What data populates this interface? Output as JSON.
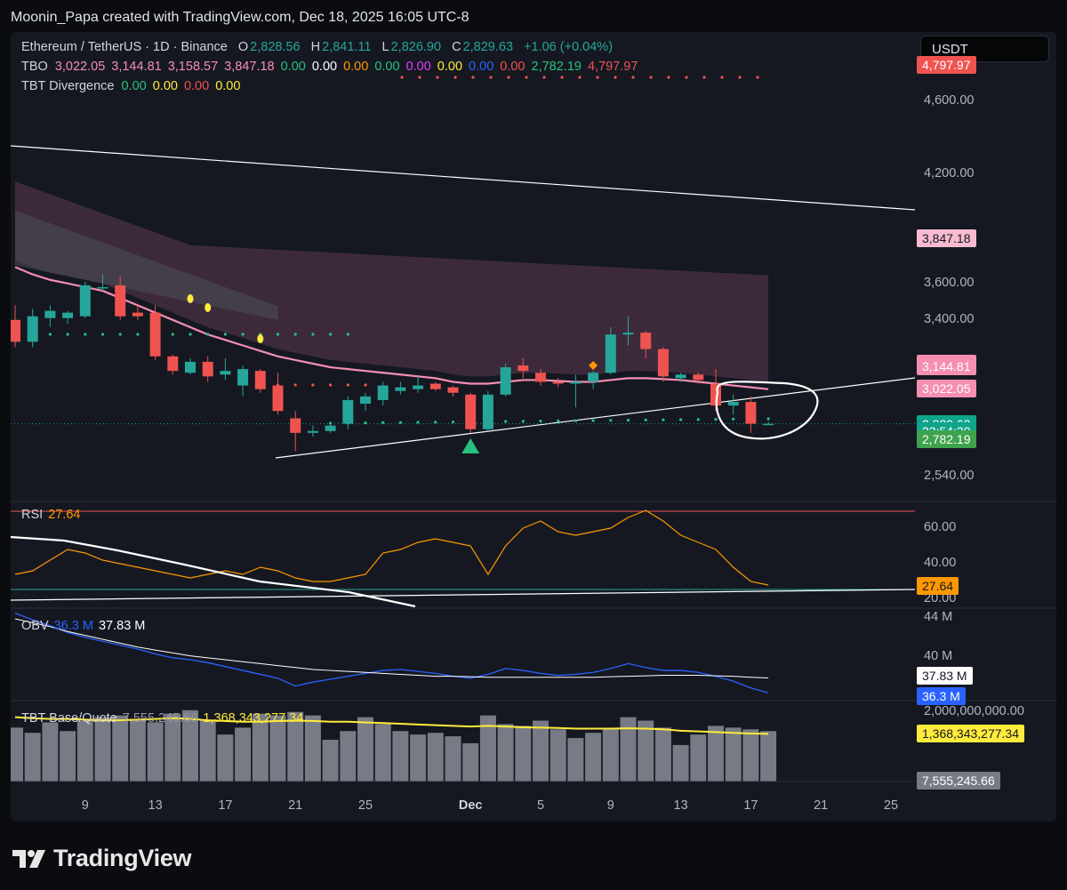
{
  "header": {
    "caption": "Moonin_Papa created with TradingView.com, Dec 18, 2025 16:05 UTC-8",
    "currency_button": "USDT"
  },
  "legend": {
    "symbol": "Ethereum / TetherUS · 1D · Binance",
    "ohlc": {
      "o_label": "O",
      "o": "2,828.56",
      "h_label": "H",
      "h": "2,841.11",
      "l_label": "L",
      "l": "2,826.90",
      "c_label": "C",
      "c": "2,829.63",
      "change": "+1.06 (+0.04%)"
    },
    "tbo_name": "TBO",
    "tbo_values": [
      {
        "text": "3,022.05",
        "color": "#f48fb1"
      },
      {
        "text": "3,144.81",
        "color": "#f48fb1"
      },
      {
        "text": "3,158.57",
        "color": "#f48fb1"
      },
      {
        "text": "3,847.18",
        "color": "#f48fb1"
      },
      {
        "text": "0.00",
        "color": "#26c281"
      },
      {
        "text": "0.00",
        "color": "#ffffff"
      },
      {
        "text": "0.00",
        "color": "#ff9800"
      },
      {
        "text": "0.00",
        "color": "#26c281"
      },
      {
        "text": "0.00",
        "color": "#e040fb"
      },
      {
        "text": "0.00",
        "color": "#ffeb3b"
      },
      {
        "text": "0.00",
        "color": "#2962ff"
      },
      {
        "text": "0.00",
        "color": "#ef5350"
      },
      {
        "text": "2,782.19",
        "color": "#26c281"
      },
      {
        "text": "4,797.97",
        "color": "#ef5350"
      }
    ],
    "div_name": "TBT Divergence",
    "div_values": [
      {
        "text": "0.00",
        "color": "#26c281"
      },
      {
        "text": "0.00",
        "color": "#ffeb3b"
      },
      {
        "text": "0.00",
        "color": "#ef5350"
      },
      {
        "text": "0.00",
        "color": "#ffeb3b"
      }
    ],
    "rsi_name": "RSI",
    "rsi_value": "27.64",
    "obv_name": "OBV",
    "obv_value1": "36.3 M",
    "obv_value2": "37.83 M",
    "tbt_name": "TBT Base/Quote",
    "tbt_value1": "7,555,245.66",
    "tbt_value2": "1,368,343,277.34"
  },
  "price_axis": [
    "4,600.00",
    "4,200.00",
    "3,600.00",
    "3,400.00",
    "2,540.00"
  ],
  "price_tags": [
    {
      "text": "4,797.97",
      "bg": "#ef5350",
      "fg": "#ffffff",
      "price": 4797.97
    },
    {
      "text": "3,847.18",
      "bg": "#f8bbd0",
      "fg": "#131722",
      "price": 3847.18
    },
    {
      "text": "3,158.57",
      "bg": "#f48fb1",
      "fg": "#ffffff",
      "price": 3158.57
    },
    {
      "text": "3,144.81",
      "bg": "#f48fb1",
      "fg": "#ffffff",
      "price": 3144.81
    },
    {
      "text": "3,022.05",
      "bg": "#f48fb1",
      "fg": "#ffffff",
      "price": 3022.05
    },
    {
      "text": "2,829.63",
      "bg": "#0ea58a",
      "fg": "#ffffff",
      "price": 2829.63
    },
    {
      "text": "23:54:30",
      "bg": "#0ea58a",
      "fg": "#ffffff",
      "price": 2790
    },
    {
      "text": "2,782.19",
      "bg": "#3fa34d",
      "fg": "#ffffff",
      "price": 2745
    }
  ],
  "rsi_axis": [
    "60.00",
    "40.00",
    "20.00"
  ],
  "rsi_tag": {
    "text": "27.64",
    "bg": "#ff9800",
    "fg": "#131722"
  },
  "obv_axis": [
    "44 M",
    "40 M"
  ],
  "obv_tags": [
    {
      "text": "37.83 M",
      "bg": "#ffffff",
      "fg": "#131722"
    },
    {
      "text": "36.3 M",
      "bg": "#2962ff",
      "fg": "#ffffff"
    }
  ],
  "tbt_axis": [
    "2,000,000,000.00"
  ],
  "tbt_tags": [
    {
      "text": "1,368,343,277.34",
      "bg": "#ffeb3b",
      "fg": "#131722"
    },
    {
      "text": "7,555,245.66",
      "bg": "#787b86",
      "fg": "#ffffff"
    }
  ],
  "date_labels": [
    "9",
    "13",
    "17",
    "21",
    "25",
    "Dec",
    "5",
    "9",
    "13",
    "17",
    "21",
    "25"
  ],
  "brand": "TradingView",
  "chart_data": {
    "type": "candlestick",
    "title": "Ethereum / TetherUS · 1D · Binance",
    "x_start": "2025-11-05",
    "candles": [
      {
        "date": "2025-11-05",
        "o": 3400,
        "h": 3480,
        "l": 3250,
        "c": 3280
      },
      {
        "date": "2025-11-06",
        "o": 3280,
        "h": 3460,
        "l": 3250,
        "c": 3420
      },
      {
        "date": "2025-11-07",
        "o": 3410,
        "h": 3480,
        "l": 3360,
        "c": 3450
      },
      {
        "date": "2025-11-08",
        "o": 3410,
        "h": 3450,
        "l": 3380,
        "c": 3440
      },
      {
        "date": "2025-11-09",
        "o": 3420,
        "h": 3610,
        "l": 3410,
        "c": 3590
      },
      {
        "date": "2025-11-10",
        "o": 3580,
        "h": 3650,
        "l": 3560,
        "c": 3580
      },
      {
        "date": "2025-11-11",
        "o": 3590,
        "h": 3640,
        "l": 3400,
        "c": 3420
      },
      {
        "date": "2025-11-12",
        "o": 3440,
        "h": 3480,
        "l": 3400,
        "c": 3420
      },
      {
        "date": "2025-11-13",
        "o": 3440,
        "h": 3480,
        "l": 3180,
        "c": 3200
      },
      {
        "date": "2025-11-14",
        "o": 3200,
        "h": 3210,
        "l": 3100,
        "c": 3120
      },
      {
        "date": "2025-11-15",
        "o": 3110,
        "h": 3190,
        "l": 3100,
        "c": 3170
      },
      {
        "date": "2025-11-16",
        "o": 3170,
        "h": 3200,
        "l": 3060,
        "c": 3090
      },
      {
        "date": "2025-11-17",
        "o": 3100,
        "h": 3190,
        "l": 3070,
        "c": 3120
      },
      {
        "date": "2025-11-18",
        "o": 3040,
        "h": 3150,
        "l": 2980,
        "c": 3130
      },
      {
        "date": "2025-11-19",
        "o": 3120,
        "h": 3130,
        "l": 3000,
        "c": 3020
      },
      {
        "date": "2025-11-20",
        "o": 3040,
        "h": 3110,
        "l": 2880,
        "c": 2900
      },
      {
        "date": "2025-11-21",
        "o": 2860,
        "h": 2900,
        "l": 2680,
        "c": 2780
      },
      {
        "date": "2025-11-22",
        "o": 2780,
        "h": 2820,
        "l": 2760,
        "c": 2790
      },
      {
        "date": "2025-11-23",
        "o": 2790,
        "h": 2830,
        "l": 2780,
        "c": 2820
      },
      {
        "date": "2025-11-24",
        "o": 2830,
        "h": 2980,
        "l": 2800,
        "c": 2960
      },
      {
        "date": "2025-11-25",
        "o": 2940,
        "h": 3000,
        "l": 2900,
        "c": 2980
      },
      {
        "date": "2025-11-26",
        "o": 2960,
        "h": 3060,
        "l": 2930,
        "c": 3040
      },
      {
        "date": "2025-11-27",
        "o": 3010,
        "h": 3060,
        "l": 2990,
        "c": 3030
      },
      {
        "date": "2025-11-28",
        "o": 3020,
        "h": 3090,
        "l": 3000,
        "c": 3040
      },
      {
        "date": "2025-11-29",
        "o": 3050,
        "h": 3060,
        "l": 3010,
        "c": 3020
      },
      {
        "date": "2025-11-30",
        "o": 3030,
        "h": 3040,
        "l": 2980,
        "c": 3000
      },
      {
        "date": "2025-12-01",
        "o": 2990,
        "h": 3000,
        "l": 2780,
        "c": 2800
      },
      {
        "date": "2025-12-02",
        "o": 2800,
        "h": 3010,
        "l": 2790,
        "c": 2990
      },
      {
        "date": "2025-12-03",
        "o": 2990,
        "h": 3160,
        "l": 2980,
        "c": 3140
      },
      {
        "date": "2025-12-04",
        "o": 3150,
        "h": 3190,
        "l": 3080,
        "c": 3120
      },
      {
        "date": "2025-12-05",
        "o": 3110,
        "h": 3130,
        "l": 3040,
        "c": 3060
      },
      {
        "date": "2025-12-06",
        "o": 3060,
        "h": 3080,
        "l": 3030,
        "c": 3050
      },
      {
        "date": "2025-12-07",
        "o": 3050,
        "h": 3100,
        "l": 2920,
        "c": 3060
      },
      {
        "date": "2025-12-08",
        "o": 3060,
        "h": 3120,
        "l": 3020,
        "c": 3110
      },
      {
        "date": "2025-12-09",
        "o": 3110,
        "h": 3360,
        "l": 3100,
        "c": 3320
      },
      {
        "date": "2025-12-10",
        "o": 3320,
        "h": 3420,
        "l": 3260,
        "c": 3330
      },
      {
        "date": "2025-12-11",
        "o": 3330,
        "h": 3340,
        "l": 3190,
        "c": 3240
      },
      {
        "date": "2025-12-12",
        "o": 3240,
        "h": 3250,
        "l": 3060,
        "c": 3090
      },
      {
        "date": "2025-12-13",
        "o": 3080,
        "h": 3110,
        "l": 3060,
        "c": 3100
      },
      {
        "date": "2025-12-14",
        "o": 3100,
        "h": 3110,
        "l": 3050,
        "c": 3070
      },
      {
        "date": "2025-12-15",
        "o": 3050,
        "h": 3130,
        "l": 2900,
        "c": 2930
      },
      {
        "date": "2025-12-16",
        "o": 2930,
        "h": 2990,
        "l": 2880,
        "c": 2950
      },
      {
        "date": "2025-12-17",
        "o": 2950,
        "h": 2980,
        "l": 2780,
        "c": 2830
      },
      {
        "date": "2025-12-18",
        "o": 2828.56,
        "h": 2841.11,
        "l": 2826.9,
        "c": 2829.63
      }
    ],
    "tbo_line": [
      3690,
      3650,
      3620,
      3600,
      3580,
      3560,
      3520,
      3480,
      3440,
      3400,
      3360,
      3320,
      3290,
      3260,
      3230,
      3200,
      3180,
      3160,
      3140,
      3130,
      3120,
      3110,
      3100,
      3090,
      3080,
      3060,
      3050,
      3050,
      3060,
      3070,
      3070,
      3065,
      3060,
      3060,
      3070,
      3080,
      3080,
      3075,
      3070,
      3060,
      3050,
      3040,
      3030,
      3020
    ],
    "ylim": [
      2400,
      4900
    ],
    "rsi": {
      "values": [
        34,
        36,
        42,
        48,
        46,
        42,
        40,
        38,
        36,
        34,
        32,
        34,
        36,
        34,
        38,
        36,
        32,
        30,
        30,
        32,
        34,
        46,
        48,
        52,
        54,
        52,
        50,
        34,
        50,
        60,
        64,
        58,
        56,
        58,
        60,
        66,
        70,
        64,
        56,
        52,
        48,
        38,
        30,
        28
      ],
      "ylim": [
        15,
        75
      ],
      "overbought": 70,
      "oversold": 30
    },
    "obv": {
      "values": [
        44.5,
        43.8,
        43.2,
        42.5,
        42.0,
        41.6,
        41.2,
        40.8,
        40.3,
        39.9,
        39.7,
        39.4,
        39.0,
        38.6,
        38.2,
        37.8,
        37.0,
        37.4,
        37.7,
        38.0,
        38.3,
        38.6,
        38.7,
        38.5,
        38.3,
        38.0,
        37.8,
        38.2,
        38.8,
        38.6,
        38.3,
        38.1,
        38.2,
        38.4,
        38.8,
        39.3,
        38.9,
        38.6,
        38.6,
        38.4,
        38.0,
        37.5,
        36.8,
        36.3
      ],
      "ma": [
        43.9,
        43.5,
        43.1,
        42.6,
        42.2,
        41.8,
        41.4,
        41.0,
        40.7,
        40.4,
        40.1,
        39.9,
        39.7,
        39.5,
        39.3,
        39.1,
        38.9,
        38.7,
        38.6,
        38.5,
        38.4,
        38.3,
        38.2,
        38.1,
        38.0,
        38.0,
        37.95,
        37.9,
        37.9,
        37.9,
        37.9,
        37.9,
        37.9,
        37.9,
        37.95,
        38.0,
        38.05,
        38.1,
        38.1,
        38.1,
        38.05,
        38.0,
        37.9,
        37.83
      ],
      "ylim": [
        35.5,
        45
      ]
    },
    "tbt_base_quote": {
      "bars": [
        1.55,
        1.4,
        1.7,
        1.45,
        1.75,
        1.85,
        1.9,
        1.8,
        1.7,
        1.95,
        2.05,
        1.75,
        1.35,
        1.55,
        1.95,
        1.9,
        2.0,
        1.9,
        1.2,
        1.45,
        1.85,
        1.65,
        1.45,
        1.35,
        1.4,
        1.3,
        1.1,
        1.9,
        1.65,
        1.6,
        1.75,
        1.5,
        1.25,
        1.4,
        1.5,
        1.85,
        1.75,
        1.55,
        1.05,
        1.35,
        1.6,
        1.55,
        1.5,
        1.45
      ],
      "line": [
        1.85,
        1.82,
        1.8,
        1.8,
        1.78,
        1.76,
        1.76,
        1.78,
        1.8,
        1.82,
        1.8,
        1.76,
        1.74,
        1.72,
        1.72,
        1.74,
        1.75,
        1.74,
        1.72,
        1.72,
        1.7,
        1.68,
        1.66,
        1.64,
        1.62,
        1.6,
        1.58,
        1.6,
        1.58,
        1.56,
        1.55,
        1.54,
        1.52,
        1.52,
        1.52,
        1.53,
        1.52,
        1.5,
        1.46,
        1.44,
        1.42,
        1.4,
        1.38,
        1.37
      ],
      "unit": "billion",
      "ylim": [
        0,
        2.3
      ]
    }
  }
}
